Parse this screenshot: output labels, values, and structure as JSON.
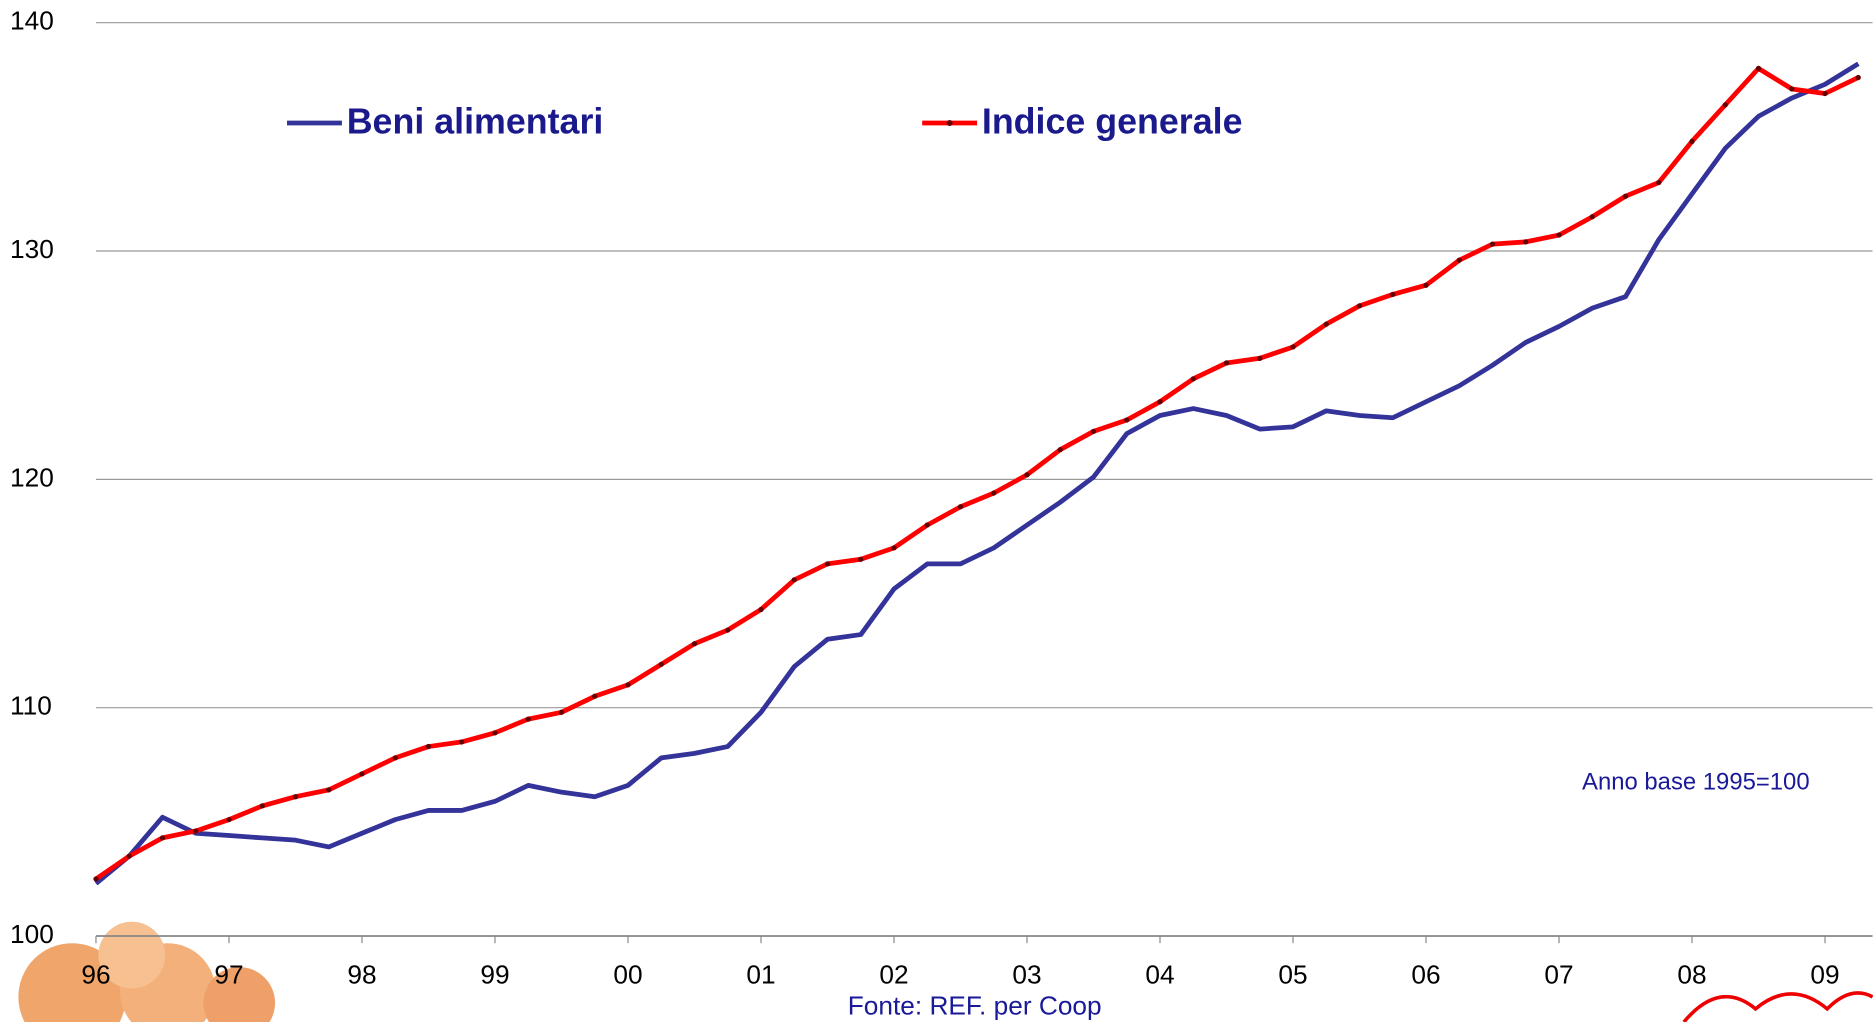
{
  "chart_data": {
    "type": "line",
    "categories": [
      "96",
      null,
      null,
      null,
      "97",
      null,
      null,
      null,
      "98",
      null,
      null,
      null,
      "99",
      null,
      null,
      null,
      "00",
      null,
      null,
      null,
      "01",
      null,
      null,
      null,
      "02",
      null,
      null,
      null,
      "03",
      null,
      null,
      null,
      "04",
      null,
      null,
      null,
      "05",
      null,
      null,
      null,
      "06",
      null,
      null,
      null,
      "07",
      null,
      null,
      null,
      "08",
      null,
      null,
      null,
      "09",
      null
    ],
    "series": [
      {
        "name": "Beni alimentari",
        "color": "#333399",
        "marker": false,
        "values": [
          102.3,
          103.5,
          105.2,
          104.5,
          104.4,
          104.3,
          104.2,
          103.9,
          104.5,
          105.1,
          105.5,
          105.5,
          105.9,
          106.6,
          106.3,
          106.1,
          106.6,
          107.8,
          108.0,
          108.3,
          109.8,
          111.8,
          113.0,
          113.2,
          115.2,
          116.3,
          116.3,
          117.0,
          118.0,
          119.0,
          120.1,
          122.0,
          122.8,
          123.1,
          122.8,
          122.2,
          122.3,
          123.0,
          122.8,
          122.7,
          123.4,
          124.1,
          125.0,
          126.0,
          126.7,
          127.5,
          128.0,
          130.5,
          132.5,
          134.5,
          135.9,
          136.7,
          137.3,
          138.2
        ]
      },
      {
        "name": "Indice generale",
        "color": "#ff0000",
        "marker": true,
        "values": [
          102.5,
          103.5,
          104.3,
          104.6,
          105.1,
          105.7,
          106.1,
          106.4,
          107.1,
          107.8,
          108.3,
          108.5,
          108.9,
          109.5,
          109.8,
          110.5,
          111.0,
          111.9,
          112.8,
          113.4,
          114.3,
          115.6,
          116.3,
          116.5,
          117.0,
          118.0,
          118.8,
          119.4,
          120.2,
          121.3,
          122.1,
          122.6,
          123.4,
          124.4,
          125.1,
          125.3,
          125.8,
          126.8,
          127.6,
          128.1,
          128.5,
          129.6,
          130.3,
          130.4,
          130.7,
          131.5,
          132.4,
          133.0,
          134.8,
          136.4,
          138.0,
          137.1,
          136.9,
          137.6
        ]
      }
    ],
    "ylim": [
      100,
      140
    ],
    "yticks": [
      100,
      110,
      120,
      130,
      140
    ],
    "grid": true,
    "annotation": "Anno base 1995=100",
    "source": "Fonte: REF. per Coop"
  }
}
